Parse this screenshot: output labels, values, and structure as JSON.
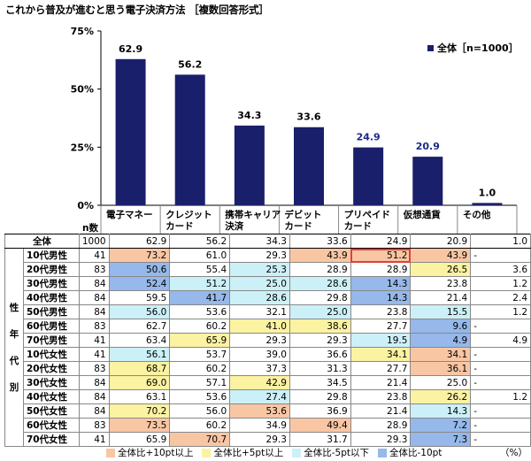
{
  "title": "これから普及が進むと思う電子決済方法 ［複数回答形式］",
  "colors": {
    "bar": "#1a1f6b",
    "axis": "#000000"
  },
  "chart_data": {
    "type": "bar",
    "categories": [
      "電子マネー",
      "クレジットカード",
      "携帯キャリア決済",
      "デビットカード",
      "プリペイドカード",
      "仮想通貨",
      "その他"
    ],
    "category_lines": [
      [
        "電子マネー"
      ],
      [
        "クレジット",
        "カード"
      ],
      [
        "携帯キャリア",
        "決済"
      ],
      [
        "デビット",
        "カード"
      ],
      [
        "プリペイド",
        "カード"
      ],
      [
        "仮想通貨"
      ],
      [
        "その他"
      ]
    ],
    "series": [
      {
        "name": "全体［n=1000］",
        "values": [
          62.9,
          56.2,
          34.3,
          33.6,
          24.9,
          20.9,
          1.0
        ]
      }
    ],
    "value_labels": [
      "62.9",
      "56.2",
      "34.3",
      "33.6",
      "24.9",
      "20.9",
      "1.0"
    ],
    "ylim": [
      0,
      75
    ],
    "yticks": [
      "0%",
      "25%",
      "50%",
      "75%"
    ],
    "ytick_values": [
      0,
      25,
      50,
      75
    ],
    "legend": "top-right"
  },
  "legend_label": "全体［n=1000］",
  "table": {
    "n_header": "n数",
    "total": {
      "label": "全体",
      "n": "1000",
      "values": [
        "62.9",
        "56.2",
        "34.3",
        "33.6",
        "24.9",
        "20.9",
        "1.0"
      ]
    },
    "group_label": [
      "性",
      "年",
      "代",
      "別"
    ],
    "rows": [
      {
        "label": "10代男性",
        "n": "41",
        "values": [
          "73.2",
          "61.0",
          "29.3",
          "43.9",
          "51.2",
          "43.9",
          "-"
        ],
        "cls": [
          "c-hi10",
          "",
          "",
          "c-hi10",
          "c-hi10 c-red",
          "c-hi10",
          "tail"
        ]
      },
      {
        "label": "20代男性",
        "n": "83",
        "values": [
          "50.6",
          "55.4",
          "25.3",
          "28.9",
          "28.9",
          "26.5",
          "3.6"
        ],
        "cls": [
          "c-lo10",
          "",
          "c-lo5",
          "",
          "",
          "c-hi5",
          ""
        ]
      },
      {
        "label": "30代男性",
        "n": "84",
        "values": [
          "52.4",
          "51.2",
          "25.0",
          "28.6",
          "14.3",
          "23.8",
          "1.2"
        ],
        "cls": [
          "c-lo10",
          "c-lo5",
          "c-lo5",
          "c-lo5",
          "c-lo10",
          "",
          ""
        ]
      },
      {
        "label": "40代男性",
        "n": "84",
        "values": [
          "59.5",
          "41.7",
          "28.6",
          "29.8",
          "14.3",
          "21.4",
          "2.4"
        ],
        "cls": [
          "",
          "c-lo10",
          "c-lo5",
          "",
          "c-lo10",
          "",
          ""
        ]
      },
      {
        "label": "50代男性",
        "n": "84",
        "values": [
          "56.0",
          "53.6",
          "32.1",
          "25.0",
          "23.8",
          "15.5",
          "1.2"
        ],
        "cls": [
          "c-lo5",
          "",
          "",
          "c-lo5",
          "",
          "c-lo5",
          ""
        ]
      },
      {
        "label": "60代男性",
        "n": "83",
        "values": [
          "62.7",
          "60.2",
          "41.0",
          "38.6",
          "27.7",
          "9.6",
          "-"
        ],
        "cls": [
          "",
          "",
          "c-hi5",
          "c-hi5",
          "",
          "c-lo10",
          "tail"
        ]
      },
      {
        "label": "70代男性",
        "n": "41",
        "values": [
          "63.4",
          "65.9",
          "29.3",
          "29.3",
          "19.5",
          "4.9",
          "4.9"
        ],
        "cls": [
          "",
          "c-hi5",
          "",
          "",
          "c-lo5",
          "c-lo10",
          ""
        ]
      },
      {
        "label": "10代女性",
        "n": "41",
        "values": [
          "56.1",
          "53.7",
          "39.0",
          "36.6",
          "34.1",
          "34.1",
          "-"
        ],
        "cls": [
          "c-lo5",
          "",
          "",
          "",
          "c-hi5",
          "c-hi10",
          "tail"
        ]
      },
      {
        "label": "20代女性",
        "n": "83",
        "values": [
          "68.7",
          "60.2",
          "37.3",
          "31.3",
          "27.7",
          "36.1",
          "-"
        ],
        "cls": [
          "c-hi5",
          "",
          "",
          "",
          "",
          "c-hi10",
          "tail"
        ]
      },
      {
        "label": "30代女性",
        "n": "84",
        "values": [
          "69.0",
          "57.1",
          "42.9",
          "34.5",
          "21.4",
          "25.0",
          "-"
        ],
        "cls": [
          "c-hi5",
          "",
          "c-hi5",
          "",
          "",
          "",
          "tail"
        ]
      },
      {
        "label": "40代女性",
        "n": "84",
        "values": [
          "63.1",
          "53.6",
          "27.4",
          "29.8",
          "23.8",
          "26.2",
          "1.2"
        ],
        "cls": [
          "",
          "",
          "c-lo5",
          "",
          "",
          "c-hi5",
          ""
        ]
      },
      {
        "label": "50代女性",
        "n": "84",
        "values": [
          "70.2",
          "56.0",
          "53.6",
          "36.9",
          "21.4",
          "14.3",
          "-"
        ],
        "cls": [
          "c-hi5",
          "",
          "c-hi10",
          "",
          "",
          "c-lo5",
          "tail"
        ]
      },
      {
        "label": "60代女性",
        "n": "83",
        "values": [
          "73.5",
          "60.2",
          "34.9",
          "49.4",
          "28.9",
          "7.2",
          "-"
        ],
        "cls": [
          "c-hi10",
          "",
          "",
          "c-hi10",
          "",
          "c-lo10",
          "tail"
        ]
      },
      {
        "label": "70代女性",
        "n": "41",
        "values": [
          "65.9",
          "70.7",
          "29.3",
          "31.7",
          "29.3",
          "7.3",
          "-"
        ],
        "cls": [
          "",
          "c-hi10",
          "",
          "",
          "",
          "c-lo10",
          "tail"
        ]
      }
    ]
  },
  "footer": {
    "items": [
      {
        "label": "全体比+10pt以上",
        "color": "#f9c6a4"
      },
      {
        "label": "全体比+5pt以上",
        "color": "#fbf2a2"
      },
      {
        "label": "全体比-5pt以下",
        "color": "#ccf0f7"
      },
      {
        "label": "全体比-10pt",
        "color": "#96b8ea"
      }
    ],
    "unit": "（%）"
  }
}
